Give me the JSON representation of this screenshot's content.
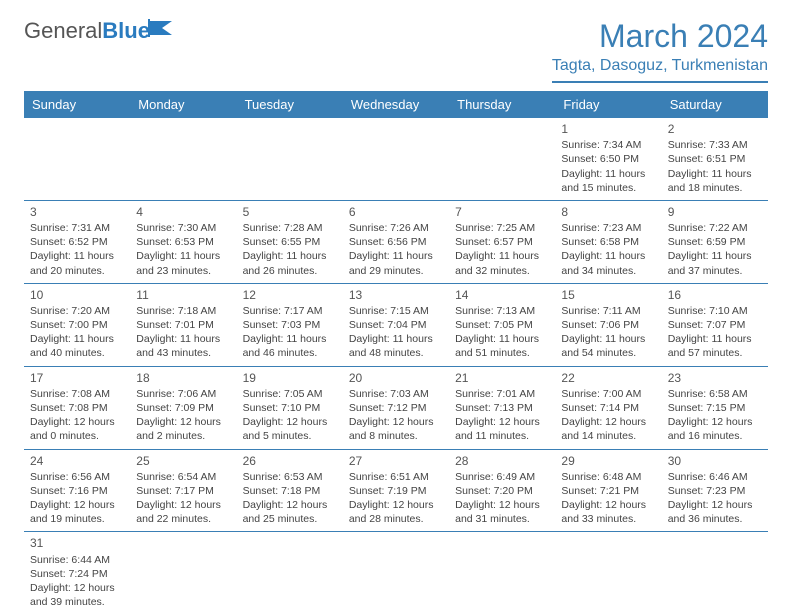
{
  "logo": {
    "text1": "General",
    "text2": "Blue"
  },
  "title": "March 2024",
  "location": "Tagta, Dasoguz, Turkmenistan",
  "colors": {
    "header_bg": "#3a7fb5",
    "header_text": "#ffffff",
    "border": "#3a7fb5",
    "title_color": "#3a7fb5",
    "body_text": "#444444",
    "background": "#ffffff"
  },
  "weekdays": [
    "Sunday",
    "Monday",
    "Tuesday",
    "Wednesday",
    "Thursday",
    "Friday",
    "Saturday"
  ],
  "weeks": [
    [
      null,
      null,
      null,
      null,
      null,
      {
        "n": "1",
        "sunrise": "7:34 AM",
        "sunset": "6:50 PM",
        "daylight": "11 hours and 15 minutes."
      },
      {
        "n": "2",
        "sunrise": "7:33 AM",
        "sunset": "6:51 PM",
        "daylight": "11 hours and 18 minutes."
      }
    ],
    [
      {
        "n": "3",
        "sunrise": "7:31 AM",
        "sunset": "6:52 PM",
        "daylight": "11 hours and 20 minutes."
      },
      {
        "n": "4",
        "sunrise": "7:30 AM",
        "sunset": "6:53 PM",
        "daylight": "11 hours and 23 minutes."
      },
      {
        "n": "5",
        "sunrise": "7:28 AM",
        "sunset": "6:55 PM",
        "daylight": "11 hours and 26 minutes."
      },
      {
        "n": "6",
        "sunrise": "7:26 AM",
        "sunset": "6:56 PM",
        "daylight": "11 hours and 29 minutes."
      },
      {
        "n": "7",
        "sunrise": "7:25 AM",
        "sunset": "6:57 PM",
        "daylight": "11 hours and 32 minutes."
      },
      {
        "n": "8",
        "sunrise": "7:23 AM",
        "sunset": "6:58 PM",
        "daylight": "11 hours and 34 minutes."
      },
      {
        "n": "9",
        "sunrise": "7:22 AM",
        "sunset": "6:59 PM",
        "daylight": "11 hours and 37 minutes."
      }
    ],
    [
      {
        "n": "10",
        "sunrise": "7:20 AM",
        "sunset": "7:00 PM",
        "daylight": "11 hours and 40 minutes."
      },
      {
        "n": "11",
        "sunrise": "7:18 AM",
        "sunset": "7:01 PM",
        "daylight": "11 hours and 43 minutes."
      },
      {
        "n": "12",
        "sunrise": "7:17 AM",
        "sunset": "7:03 PM",
        "daylight": "11 hours and 46 minutes."
      },
      {
        "n": "13",
        "sunrise": "7:15 AM",
        "sunset": "7:04 PM",
        "daylight": "11 hours and 48 minutes."
      },
      {
        "n": "14",
        "sunrise": "7:13 AM",
        "sunset": "7:05 PM",
        "daylight": "11 hours and 51 minutes."
      },
      {
        "n": "15",
        "sunrise": "7:11 AM",
        "sunset": "7:06 PM",
        "daylight": "11 hours and 54 minutes."
      },
      {
        "n": "16",
        "sunrise": "7:10 AM",
        "sunset": "7:07 PM",
        "daylight": "11 hours and 57 minutes."
      }
    ],
    [
      {
        "n": "17",
        "sunrise": "7:08 AM",
        "sunset": "7:08 PM",
        "daylight": "12 hours and 0 minutes."
      },
      {
        "n": "18",
        "sunrise": "7:06 AM",
        "sunset": "7:09 PM",
        "daylight": "12 hours and 2 minutes."
      },
      {
        "n": "19",
        "sunrise": "7:05 AM",
        "sunset": "7:10 PM",
        "daylight": "12 hours and 5 minutes."
      },
      {
        "n": "20",
        "sunrise": "7:03 AM",
        "sunset": "7:12 PM",
        "daylight": "12 hours and 8 minutes."
      },
      {
        "n": "21",
        "sunrise": "7:01 AM",
        "sunset": "7:13 PM",
        "daylight": "12 hours and 11 minutes."
      },
      {
        "n": "22",
        "sunrise": "7:00 AM",
        "sunset": "7:14 PM",
        "daylight": "12 hours and 14 minutes."
      },
      {
        "n": "23",
        "sunrise": "6:58 AM",
        "sunset": "7:15 PM",
        "daylight": "12 hours and 16 minutes."
      }
    ],
    [
      {
        "n": "24",
        "sunrise": "6:56 AM",
        "sunset": "7:16 PM",
        "daylight": "12 hours and 19 minutes."
      },
      {
        "n": "25",
        "sunrise": "6:54 AM",
        "sunset": "7:17 PM",
        "daylight": "12 hours and 22 minutes."
      },
      {
        "n": "26",
        "sunrise": "6:53 AM",
        "sunset": "7:18 PM",
        "daylight": "12 hours and 25 minutes."
      },
      {
        "n": "27",
        "sunrise": "6:51 AM",
        "sunset": "7:19 PM",
        "daylight": "12 hours and 28 minutes."
      },
      {
        "n": "28",
        "sunrise": "6:49 AM",
        "sunset": "7:20 PM",
        "daylight": "12 hours and 31 minutes."
      },
      {
        "n": "29",
        "sunrise": "6:48 AM",
        "sunset": "7:21 PM",
        "daylight": "12 hours and 33 minutes."
      },
      {
        "n": "30",
        "sunrise": "6:46 AM",
        "sunset": "7:23 PM",
        "daylight": "12 hours and 36 minutes."
      }
    ],
    [
      {
        "n": "31",
        "sunrise": "6:44 AM",
        "sunset": "7:24 PM",
        "daylight": "12 hours and 39 minutes."
      },
      null,
      null,
      null,
      null,
      null,
      null
    ]
  ],
  "labels": {
    "sunrise": "Sunrise: ",
    "sunset": "Sunset: ",
    "daylight": "Daylight: "
  }
}
